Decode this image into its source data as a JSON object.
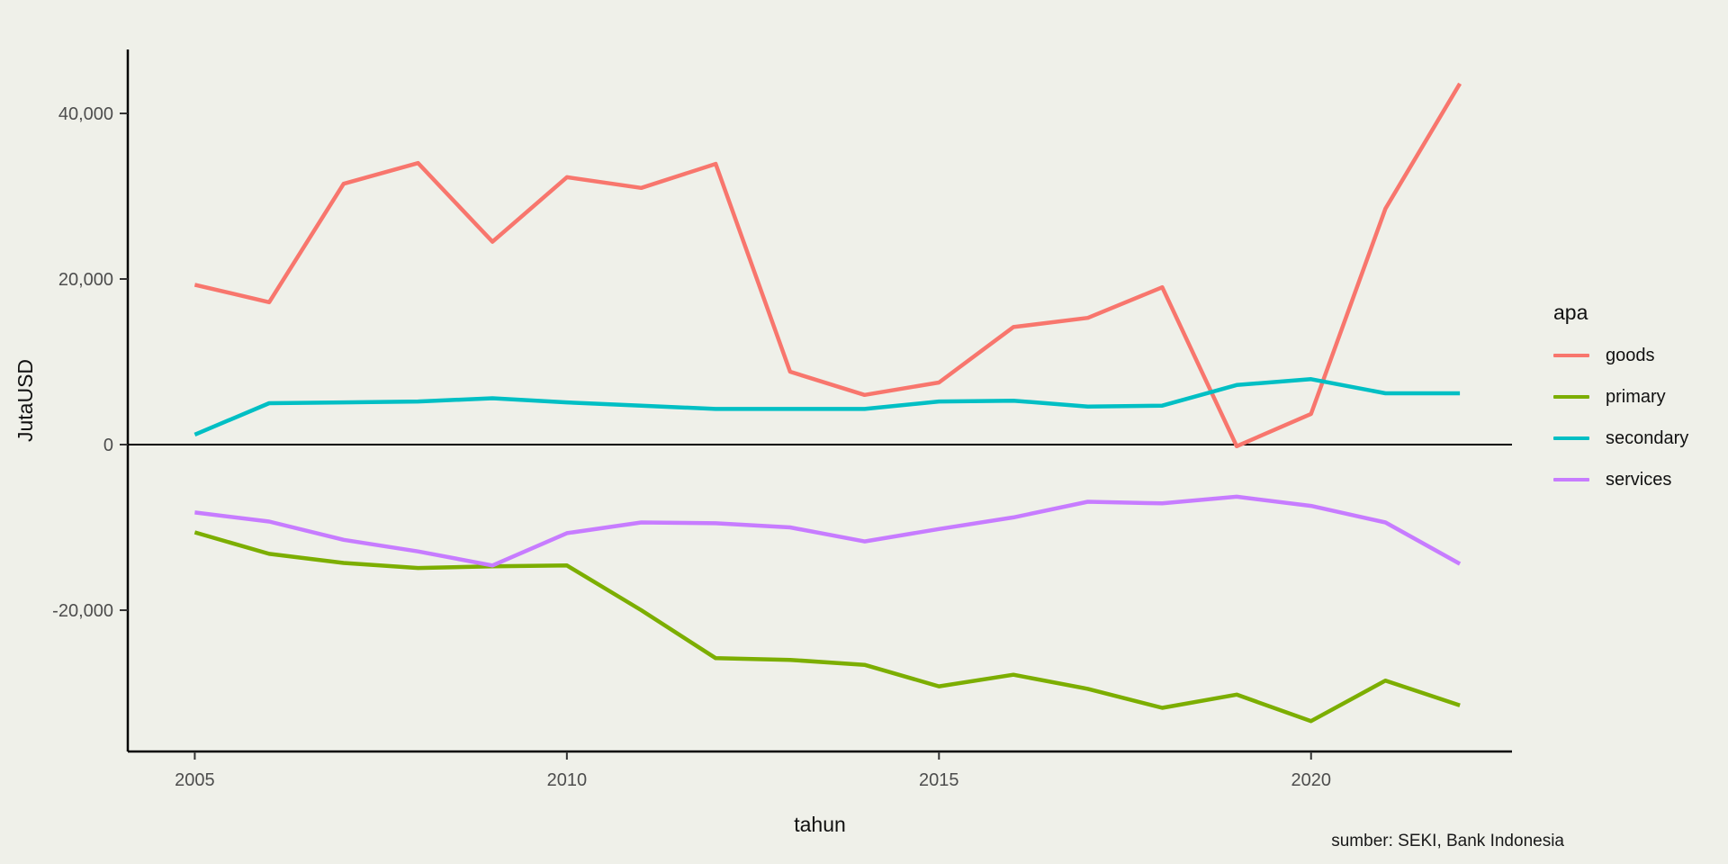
{
  "figure": {
    "background": "#EFF0E9",
    "caption": "sumber: SEKI, Bank Indonesia"
  },
  "legend": {
    "title": "apa",
    "items": [
      {
        "label": "goods",
        "color": "#F8766D"
      },
      {
        "label": "primary",
        "color": "#7CAE00"
      },
      {
        "label": "secondary",
        "color": "#00BFC4"
      },
      {
        "label": "services",
        "color": "#C77CFF"
      }
    ]
  },
  "chart_data": {
    "type": "line",
    "title": "",
    "xlabel": "tahun",
    "ylabel": "JutaUSD",
    "x": [
      2005,
      2006,
      2007,
      2008,
      2009,
      2010,
      2011,
      2012,
      2013,
      2014,
      2015,
      2016,
      2017,
      2018,
      2019,
      2020,
      2021,
      2022
    ],
    "series": [
      {
        "name": "goods",
        "color": "#F8766D",
        "values": [
          19300,
          17200,
          31500,
          34000,
          24500,
          32300,
          31000,
          33900,
          8800,
          6000,
          7500,
          14200,
          15300,
          19000,
          -200,
          3700,
          28500,
          43600
        ]
      },
      {
        "name": "primary",
        "color": "#7CAE00",
        "values": [
          -10600,
          -13200,
          -14300,
          -14900,
          -14700,
          -14600,
          -20000,
          -25800,
          -26000,
          -26600,
          -29200,
          -27800,
          -29500,
          -31800,
          -30200,
          -33400,
          -28500,
          -31500
        ]
      },
      {
        "name": "secondary",
        "color": "#00BFC4",
        "values": [
          1200,
          5000,
          5100,
          5200,
          5600,
          5100,
          4700,
          4300,
          4300,
          4300,
          5200,
          5300,
          4600,
          4700,
          7200,
          7900,
          6200,
          6200
        ]
      },
      {
        "name": "services",
        "color": "#C77CFF",
        "values": [
          -8200,
          -9300,
          -11500,
          -12900,
          -14600,
          -10700,
          -9400,
          -9500,
          -10000,
          -11700,
          -10200,
          -8800,
          -6900,
          -7100,
          -6300,
          -7400,
          -9400,
          -14400
        ]
      }
    ],
    "x_ticks": [
      2005,
      2010,
      2015,
      2020
    ],
    "x_tick_labels": [
      "2005",
      "2010",
      "2015",
      "2020"
    ],
    "y_ticks": [
      40000,
      20000,
      0,
      -20000
    ],
    "y_tick_labels": [
      "40,000",
      "20,000",
      "0",
      "-20,000"
    ],
    "xlim": [
      2004.1,
      2022.7
    ],
    "ylim": [
      -37070,
      47720
    ],
    "grid": false,
    "zero_line": true,
    "legend_position": "right",
    "tick_color": "#4d4d4d",
    "axis_color": "#000000"
  }
}
